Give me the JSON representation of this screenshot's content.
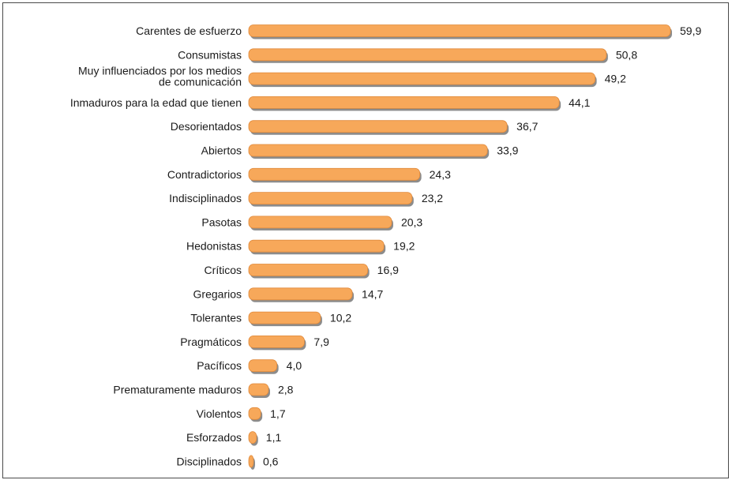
{
  "chart_data": {
    "type": "bar",
    "orientation": "horizontal",
    "categories": [
      "Carentes de esfuerzo",
      "Consumistas",
      "Muy influenciados por los medios de comunicación",
      "Inmaduros para la edad que tienen",
      "Desorientados",
      "Abiertos",
      "Contradictorios",
      "Indisciplinados",
      "Pasotas",
      "Hedonistas",
      "Críticos",
      "Gregarios",
      "Tolerantes",
      "Pragmáticos",
      "Pacíficos",
      "Prematuramente maduros",
      "Violentos",
      "Esforzados",
      "Disciplinados"
    ],
    "category_lines": [
      [
        "Carentes de esfuerzo"
      ],
      [
        "Consumistas"
      ],
      [
        "Muy influenciados por los medios",
        "de comunicación"
      ],
      [
        "Inmaduros para la edad que tienen"
      ],
      [
        "Desorientados"
      ],
      [
        "Abiertos"
      ],
      [
        "Contradictorios"
      ],
      [
        "Indisciplinados"
      ],
      [
        "Pasotas"
      ],
      [
        "Hedonistas"
      ],
      [
        "Críticos"
      ],
      [
        "Gregarios"
      ],
      [
        "Tolerantes"
      ],
      [
        "Pragmáticos"
      ],
      [
        "Pacíficos"
      ],
      [
        "Prematuramente maduros"
      ],
      [
        "Violentos"
      ],
      [
        "Esforzados"
      ],
      [
        "Disciplinados"
      ]
    ],
    "values": [
      59.9,
      50.8,
      49.2,
      44.1,
      36.7,
      33.9,
      24.3,
      23.2,
      20.3,
      19.2,
      16.9,
      14.7,
      10.2,
      7.9,
      4.0,
      2.8,
      1.7,
      1.1,
      0.6
    ],
    "value_labels": [
      "59,9",
      "50,8",
      "49,2",
      "44,1",
      "36,7",
      "33,9",
      "24,3",
      "23,2",
      "20,3",
      "19,2",
      "16,9",
      "14,7",
      "10,2",
      "7,9",
      "4,0",
      "2,8",
      "1,7",
      "1,1",
      "0,6"
    ],
    "xlim": [
      0,
      59.9
    ],
    "grid": false,
    "colors": {
      "bar": "#F7A85A",
      "bar_border": "#E0893A",
      "shadow": "#8C8C8C"
    }
  }
}
